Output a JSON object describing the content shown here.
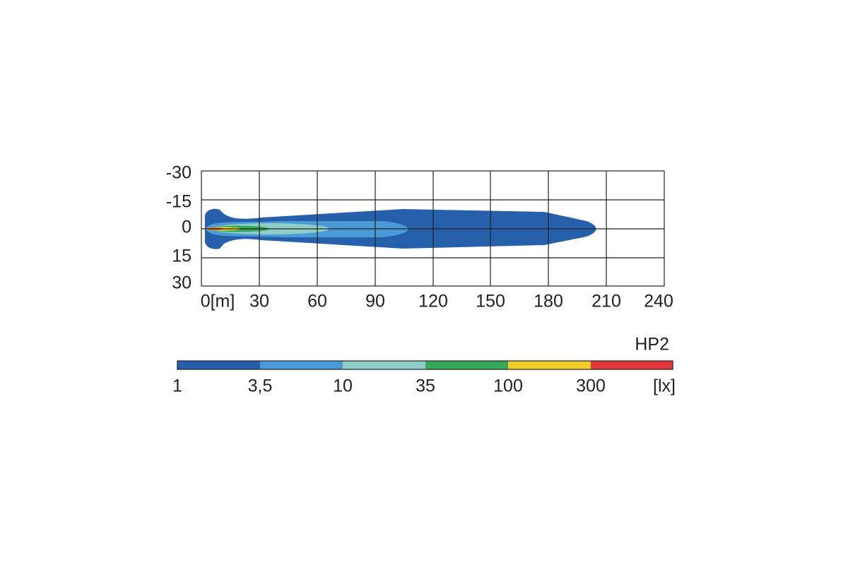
{
  "title": "HP2",
  "y_axis": {
    "labels": [
      "-30",
      "-15",
      "0",
      "15",
      "30"
    ]
  },
  "x_axis": {
    "labels": [
      "0[m]",
      "30",
      "60",
      "90",
      "120",
      "150",
      "180",
      "210",
      "240"
    ]
  },
  "legend": {
    "labels": [
      "1",
      "3,5",
      "10",
      "35",
      "100",
      "300"
    ],
    "unit": "[lx]"
  }
}
